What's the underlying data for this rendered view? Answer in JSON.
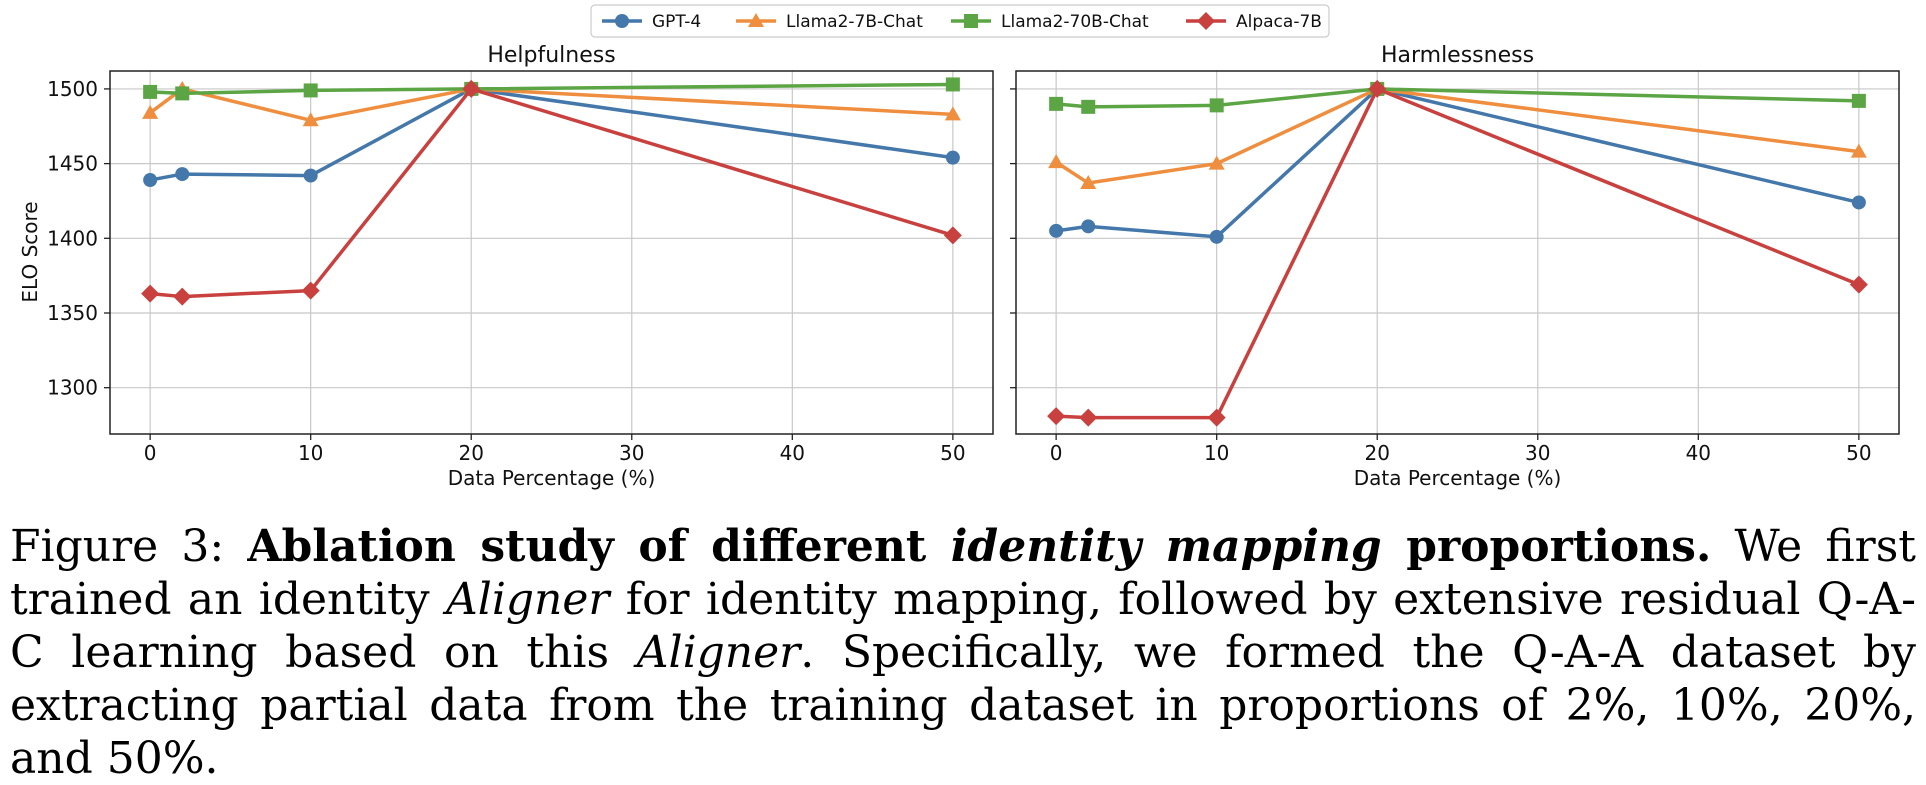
{
  "chart_data": {
    "type": "line",
    "legend": [
      "GPT-4",
      "Llama2-7B-Chat",
      "Llama2-70B-Chat",
      "Alpaca-7B"
    ],
    "legend_position": "top-center",
    "colors": {
      "GPT-4": "#4477aa",
      "Llama2-7B-Chat": "#ee8e3e",
      "Llama2-70B-Chat": "#5ca544",
      "Alpaca-7B": "#c8413e"
    },
    "markers": {
      "GPT-4": "circle",
      "Llama2-7B-Chat": "triangle",
      "Llama2-70B-Chat": "square",
      "Alpaca-7B": "diamond"
    },
    "shared_ylabel": "ELO Score",
    "panels": [
      {
        "title": "Helpfulness",
        "xlabel": "Data Percentage (%)",
        "xlim": [
          -2.5,
          52.5
        ],
        "ylim": [
          1269,
          1512
        ],
        "xticks": [
          0,
          10,
          20,
          30,
          40,
          50
        ],
        "yticks": [
          1300,
          1350,
          1400,
          1450,
          1500
        ],
        "x": [
          0,
          2,
          10,
          20,
          50
        ],
        "series": [
          {
            "name": "GPT-4",
            "values": [
              1439,
              1443,
              1442,
              1500,
              1454
            ]
          },
          {
            "name": "Llama2-7B-Chat",
            "values": [
              1484,
              1500,
              1479,
              1500,
              1483
            ]
          },
          {
            "name": "Llama2-70B-Chat",
            "values": [
              1498,
              1497,
              1499,
              1500,
              1503
            ]
          },
          {
            "name": "Alpaca-7B",
            "values": [
              1363,
              1361,
              1365,
              1500,
              1402
            ]
          }
        ]
      },
      {
        "title": "Harmlessness",
        "xlabel": "Data Percentage (%)",
        "xlim": [
          -2.5,
          52.5
        ],
        "ylim": [
          1269,
          1512
        ],
        "xticks": [
          0,
          10,
          20,
          30,
          40,
          50
        ],
        "yticks": [
          1300,
          1350,
          1400,
          1450,
          1500
        ],
        "x": [
          0,
          2,
          10,
          20,
          50
        ],
        "series": [
          {
            "name": "GPT-4",
            "values": [
              1405,
              1408,
              1401,
              1500,
              1424
            ]
          },
          {
            "name": "Llama2-7B-Chat",
            "values": [
              1451,
              1437,
              1450,
              1500,
              1458
            ]
          },
          {
            "name": "Llama2-70B-Chat",
            "values": [
              1490,
              1488,
              1489,
              1500,
              1492
            ]
          },
          {
            "name": "Alpaca-7B",
            "values": [
              1281,
              1280,
              1280,
              1500,
              1369
            ]
          }
        ]
      }
    ]
  },
  "caption": {
    "label": "Figure 3:",
    "bold1": "Ablation study of different",
    "bold_italic": "identity mapping",
    "bold2": "proportions.",
    "t1": "We first trained an identity",
    "italic1": "Aligner",
    "t2": "for identity mapping, followed by extensive residual Q-A-C learning based on this",
    "italic2": "Aligner",
    "t3": ". Specifically, we formed the Q-A-A dataset by extracting partial data from the training dataset in proportions of 2%, 10%, 20%, and 50%."
  }
}
